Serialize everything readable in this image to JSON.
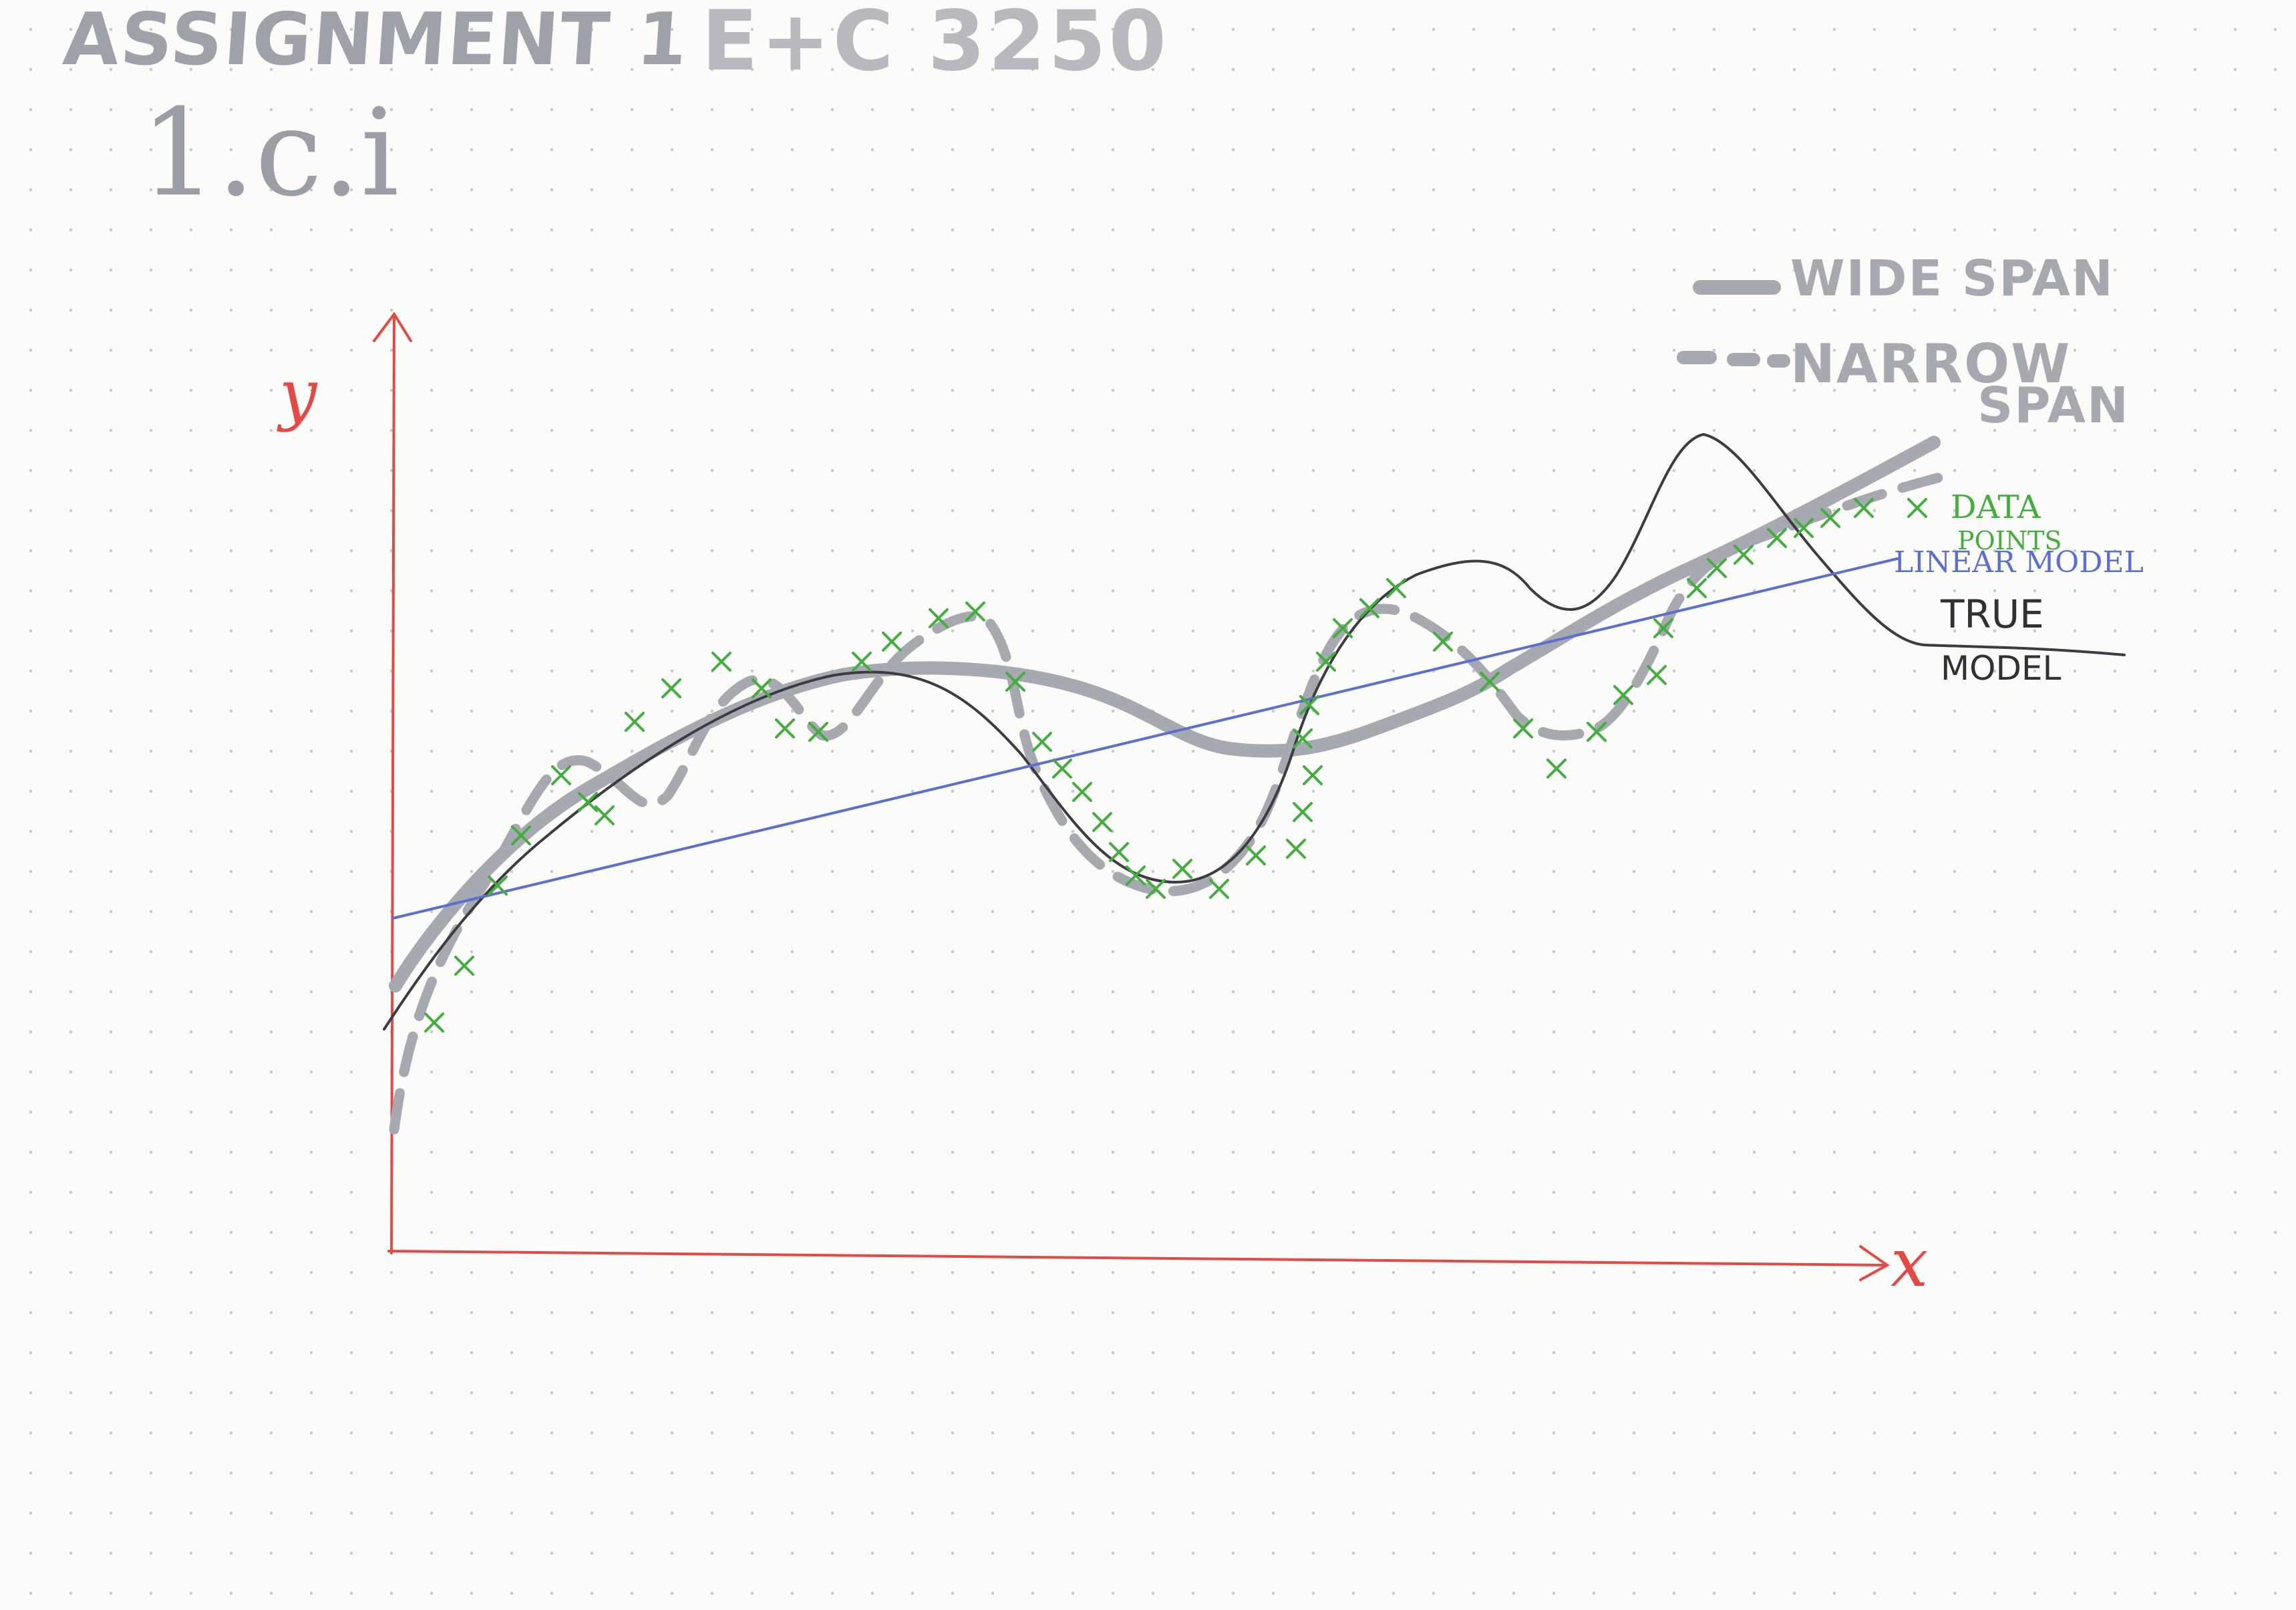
{
  "header": {
    "assignment": "ASSIGNMENT 1",
    "course": "E+C 3250",
    "question": "1.c.i"
  },
  "legend": {
    "wide_span": "WIDE SPAN",
    "narrow_span_line1": "NARROW",
    "narrow_span_line2": "SPAN"
  },
  "labels": {
    "data_line1": "DATA",
    "data_line2": "POINTS",
    "linear_model": "LINEAR MODEL",
    "true_line1": "TRUE",
    "true_line2": "MODEL"
  },
  "axes": {
    "y": "y",
    "x": "x"
  },
  "colors": {
    "axis": "#e24a45",
    "data_points": "#43ad3f",
    "linear_model": "#5c6fcf",
    "true_model": "#3a3c41",
    "wide_span": "#a6a9b0",
    "narrow_span": "#a6a9b0"
  }
}
